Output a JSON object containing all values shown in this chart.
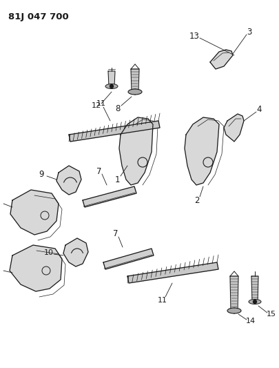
{
  "title": "81J 047 700",
  "bg_color": "#ffffff",
  "line_color": "#1a1a1a",
  "figsize": [
    4.06,
    5.33
  ],
  "dpi": 100
}
